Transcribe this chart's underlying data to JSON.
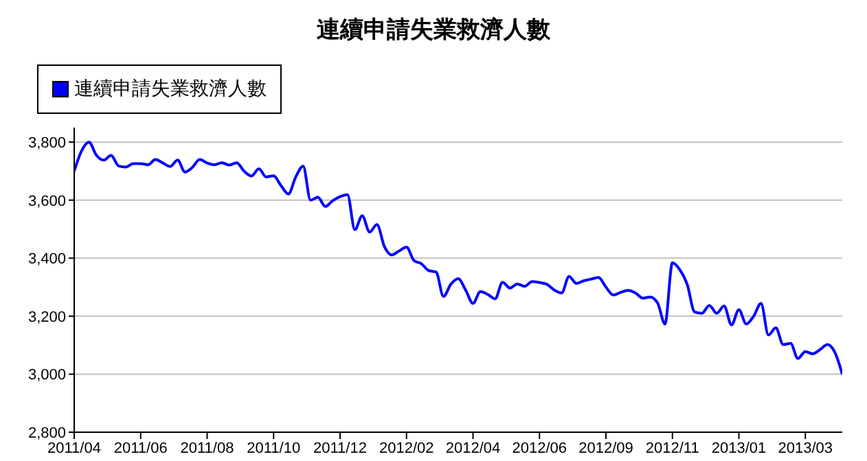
{
  "chart_data": {
    "type": "line",
    "title": "連續申請失業救濟人數",
    "categories": [
      "2011/04",
      null,
      null,
      null,
      null,
      null,
      null,
      null,
      null,
      "2011/06",
      null,
      null,
      null,
      null,
      null,
      null,
      null,
      null,
      "2011/08",
      null,
      null,
      null,
      null,
      null,
      null,
      null,
      null,
      "2011/10",
      null,
      null,
      null,
      null,
      null,
      null,
      null,
      null,
      "2011/12",
      null,
      null,
      null,
      null,
      null,
      null,
      null,
      null,
      "2012/02",
      null,
      null,
      null,
      null,
      null,
      null,
      null,
      null,
      "2012/04",
      null,
      null,
      null,
      null,
      null,
      null,
      null,
      null,
      "2012/06",
      null,
      null,
      null,
      null,
      null,
      null,
      null,
      null,
      "2012/09",
      null,
      null,
      null,
      null,
      null,
      null,
      null,
      null,
      "2012/11",
      null,
      null,
      null,
      null,
      null,
      null,
      null,
      null,
      "2013/01",
      null,
      null,
      null,
      null,
      null,
      null,
      null,
      null,
      "2013/03",
      null,
      null,
      null,
      null,
      null
    ],
    "series": [
      {
        "name": "連續申請失業救濟人數",
        "color": "#0000ff",
        "values": [
          3700,
          3770,
          3800,
          3755,
          3738,
          3754,
          3718,
          3714,
          3726,
          3726,
          3722,
          3740,
          3728,
          3716,
          3738,
          3697,
          3713,
          3740,
          3728,
          3722,
          3729,
          3721,
          3729,
          3700,
          3683,
          3708,
          3680,
          3684,
          3650,
          3621,
          3680,
          3717,
          3600,
          3610,
          3578,
          3598,
          3612,
          3619,
          3498,
          3546,
          3490,
          3516,
          3440,
          3411,
          3425,
          3438,
          3392,
          3381,
          3357,
          3352,
          3268,
          3310,
          3329,
          3290,
          3244,
          3285,
          3275,
          3260,
          3317,
          3297,
          3311,
          3303,
          3319,
          3316,
          3310,
          3290,
          3280,
          3337,
          3313,
          3322,
          3328,
          3333,
          3300,
          3273,
          3282,
          3289,
          3280,
          3262,
          3266,
          3245,
          3173,
          3384,
          3360,
          3310,
          3215,
          3210,
          3237,
          3210,
          3235,
          3170,
          3222,
          3173,
          3200,
          3244,
          3135,
          3160,
          3102,
          3106,
          3054,
          3078,
          3070,
          3085,
          3102,
          3075,
          3000
        ]
      }
    ],
    "ylim": [
      2800,
      3850
    ],
    "yticks": [
      {
        "value": 2800,
        "label": "2,800"
      },
      {
        "value": 3000,
        "label": "3,000"
      },
      {
        "value": 3200,
        "label": "3,200"
      },
      {
        "value": 3400,
        "label": "3,400"
      },
      {
        "value": 3600,
        "label": "3,600"
      },
      {
        "value": 3800,
        "label": "3,800"
      }
    ],
    "grid": "y",
    "legend": "top left",
    "marker": "none",
    "line_style": "solid"
  }
}
